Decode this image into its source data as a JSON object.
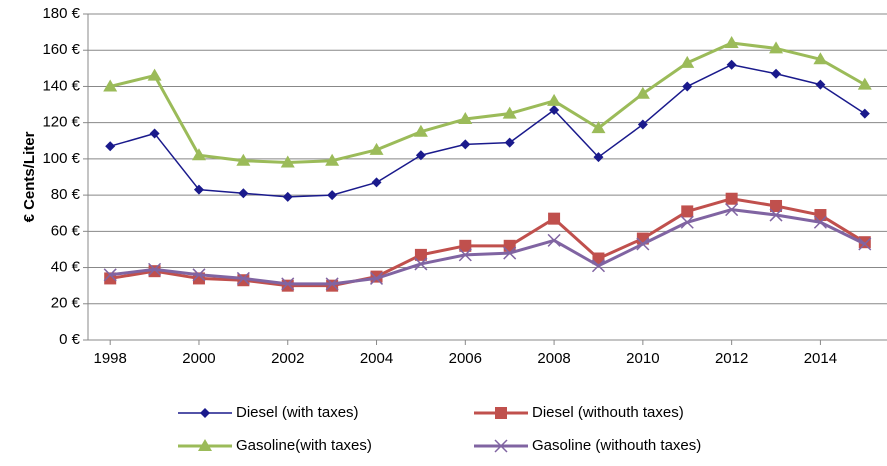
{
  "chart_data": {
    "type": "line",
    "y_label": "€ Cents/Liter",
    "x": [
      1998,
      1999,
      2000,
      2001,
      2002,
      2003,
      2004,
      2005,
      2006,
      2007,
      2008,
      2009,
      2010,
      2011,
      2012,
      2013,
      2014,
      2015
    ],
    "xlim": [
      1997.5,
      2015.5
    ],
    "xticks": [
      1998,
      2000,
      2002,
      2004,
      2006,
      2008,
      2010,
      2012,
      2014
    ],
    "ylim": [
      0,
      180
    ],
    "yticks": [
      {
        "value": 0,
        "label": "0 €"
      },
      {
        "value": 20,
        "label": "20 €"
      },
      {
        "value": 40,
        "label": "40 €"
      },
      {
        "value": 60,
        "label": "60 €"
      },
      {
        "value": 80,
        "label": "80 €"
      },
      {
        "value": 100,
        "label": "100 €"
      },
      {
        "value": 120,
        "label": "120 €"
      },
      {
        "value": 140,
        "label": "140 €"
      },
      {
        "value": 160,
        "label": "160 €"
      },
      {
        "value": 180,
        "label": "180 €"
      }
    ],
    "grid": true,
    "legend": "bottom",
    "series": [
      {
        "name": "Diesel (with taxes)",
        "color": "#1a1a8c",
        "marker": "diamond",
        "width": 1.5,
        "values": [
          107,
          114,
          83,
          81,
          79,
          80,
          87,
          102,
          108,
          109,
          127,
          101,
          119,
          140,
          152,
          147,
          141,
          125
        ]
      },
      {
        "name": "Diesel (withouth taxes)",
        "color": "#c0504d",
        "marker": "square",
        "width": 3,
        "values": [
          34,
          38,
          34,
          33,
          30,
          30,
          35,
          47,
          52,
          52,
          67,
          45,
          56,
          71,
          78,
          74,
          69,
          54
        ]
      },
      {
        "name": "Gasoline(with taxes)",
        "color": "#9bbb59",
        "marker": "triangle",
        "width": 3,
        "values": [
          140,
          146,
          102,
          99,
          98,
          99,
          105,
          115,
          122,
          125,
          132,
          117,
          136,
          153,
          164,
          161,
          155,
          141
        ]
      },
      {
        "name": "Gasoline (withouth taxes)",
        "color": "#8064a2",
        "marker": "x",
        "width": 3,
        "values": [
          36,
          39,
          36,
          34,
          31,
          31,
          34,
          42,
          47,
          48,
          55,
          41,
          53,
          65,
          72,
          69,
          65,
          53
        ]
      }
    ]
  }
}
